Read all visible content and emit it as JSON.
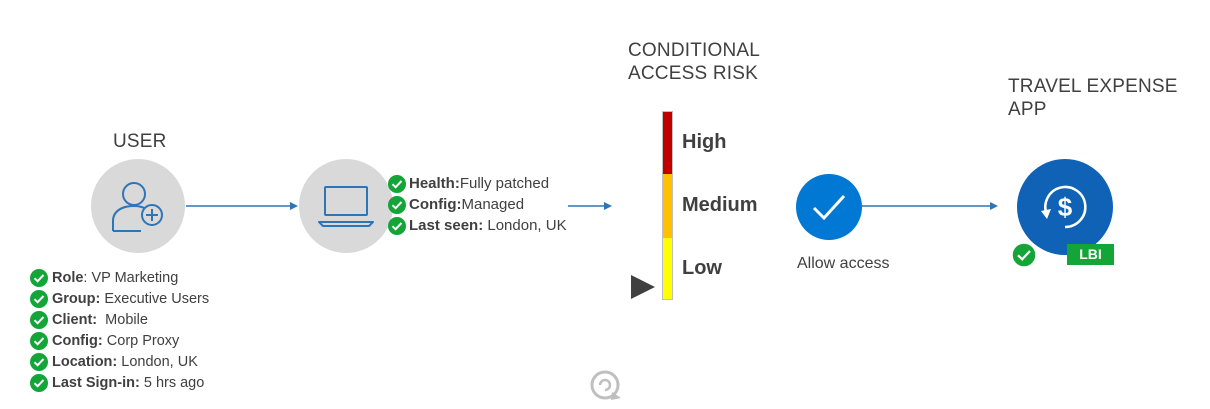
{
  "user": {
    "heading": "USER",
    "attributes": [
      {
        "key": "Role",
        "sep": ":",
        "value": " VP Marketing"
      },
      {
        "key": "Group",
        "sep": ":",
        "value": " Executive Users"
      },
      {
        "key": "Client",
        "sep": ":",
        "value": "  Mobile"
      },
      {
        "key": "Config",
        "sep": ":",
        "value": " Corp Proxy"
      },
      {
        "key": "Location",
        "sep": ":",
        "value": " London, UK"
      },
      {
        "key": "Last Sign-in",
        "sep": ":",
        "value": " 5 hrs ago"
      }
    ]
  },
  "device": {
    "checks": [
      {
        "key": "Health",
        "sep": ":",
        "value": "Fully patched"
      },
      {
        "key": "Config",
        "sep": ":",
        "value": "Managed"
      },
      {
        "key": "Last seen",
        "sep": ":",
        "value": " London, UK"
      }
    ]
  },
  "risk": {
    "heading_line1": "CONDITIONAL",
    "heading_line2": "ACCESS RISK",
    "levels": [
      "High",
      "Medium",
      "Low"
    ],
    "current_level": "Low",
    "colors": {
      "high": "#c00000",
      "medium": "#ffc000",
      "low": "#ffff00"
    }
  },
  "decision": {
    "label": "Allow access",
    "color": "#0078d4"
  },
  "app": {
    "heading_line1": "TRAVEL EXPENSE",
    "heading_line2": "APP",
    "badge": "LBI",
    "icon": "dollar-sync-icon",
    "color": "#0f62b6",
    "badge_color": "#13a538"
  },
  "colors": {
    "check_green": "#13a538",
    "arrow_blue": "#2e75b6"
  }
}
